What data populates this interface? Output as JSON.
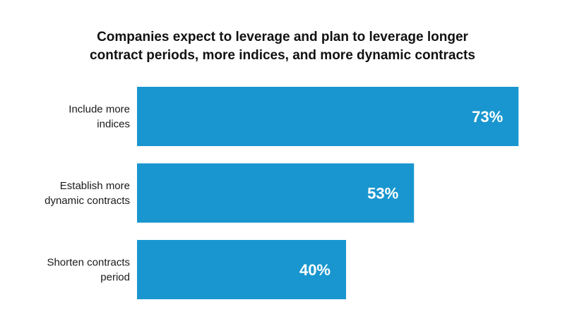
{
  "chart_data": {
    "type": "bar",
    "orientation": "horizontal",
    "title_lines": [
      "Companies expect to leverage and plan to leverage longer",
      "contract periods, more indices, and more dynamic contracts"
    ],
    "categories": [
      [
        "Include more",
        "indices"
      ],
      [
        "Establish more",
        "dynamic contracts"
      ],
      [
        "Shorten contracts",
        "period"
      ]
    ],
    "values": [
      73,
      53,
      40
    ],
    "value_labels": [
      "73%",
      "53%",
      "40%"
    ],
    "xlim": [
      0,
      100
    ],
    "grid": false,
    "bar_color": "#1996cf",
    "label_color": "#ffffff"
  }
}
